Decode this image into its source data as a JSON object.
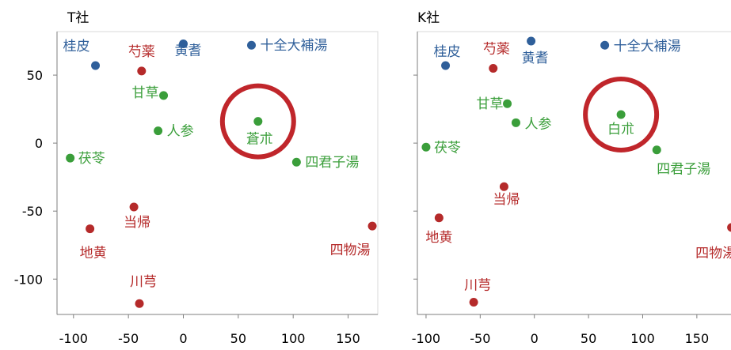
{
  "chart_data": [
    {
      "type": "scatter",
      "title": "T社",
      "xlabel": "",
      "ylabel": "",
      "xlim": [
        -115,
        177
      ],
      "ylim": [
        -126,
        82
      ],
      "xticks": [
        "-100",
        "-50",
        "0",
        "50",
        "100",
        "150"
      ],
      "yticks": [
        "50",
        "0",
        "-50",
        "-100"
      ],
      "grid": false,
      "legend": "none",
      "highlight": {
        "label": "蒼朮",
        "x": 68,
        "y": 16
      },
      "points": [
        {
          "label": "桂皮",
          "x": -80,
          "y": 57,
          "color": "#2f5f9a"
        },
        {
          "label": "芍薬",
          "x": -38,
          "y": 53,
          "color": "#b52a2a"
        },
        {
          "label": "黄耆",
          "x": 0,
          "y": 73,
          "color": "#2f5f9a"
        },
        {
          "label": "十全大補湯",
          "x": 62,
          "y": 72,
          "color": "#2f5f9a"
        },
        {
          "label": "甘草",
          "x": -18,
          "y": 35,
          "color": "#3a9e3a"
        },
        {
          "label": "人参",
          "x": -23,
          "y": 9,
          "color": "#3a9e3a"
        },
        {
          "label": "蒼朮",
          "x": 68,
          "y": 16,
          "color": "#3a9e3a"
        },
        {
          "label": "茯苓",
          "x": -103,
          "y": -11,
          "color": "#3a9e3a"
        },
        {
          "label": "四君子湯",
          "x": 103,
          "y": -14,
          "color": "#3a9e3a"
        },
        {
          "label": "当帰",
          "x": -45,
          "y": -47,
          "color": "#b52a2a"
        },
        {
          "label": "地黄",
          "x": -85,
          "y": -63,
          "color": "#b52a2a"
        },
        {
          "label": "四物湯",
          "x": 172,
          "y": -61,
          "color": "#b52a2a"
        },
        {
          "label": "川芎",
          "x": -40,
          "y": -118,
          "color": "#b52a2a"
        }
      ]
    },
    {
      "type": "scatter",
      "title": "K社",
      "xlabel": "",
      "ylabel": "",
      "xlim": [
        -108,
        183
      ],
      "ylim": [
        -126,
        82
      ],
      "xticks": [
        "-100",
        "-50",
        "0",
        "50",
        "100",
        "150"
      ],
      "yticks": [],
      "grid": false,
      "legend": "none",
      "highlight": {
        "label": "白朮",
        "x": 80,
        "y": 21
      },
      "points": [
        {
          "label": "桂皮",
          "x": -82,
          "y": 57,
          "color": "#2f5f9a"
        },
        {
          "label": "芍薬",
          "x": -38,
          "y": 55,
          "color": "#b52a2a"
        },
        {
          "label": "黄耆",
          "x": -3,
          "y": 75,
          "color": "#2f5f9a"
        },
        {
          "label": "十全大補湯",
          "x": 65,
          "y": 72,
          "color": "#2f5f9a"
        },
        {
          "label": "甘草",
          "x": -25,
          "y": 29,
          "color": "#3a9e3a"
        },
        {
          "label": "人参",
          "x": -17,
          "y": 15,
          "color": "#3a9e3a"
        },
        {
          "label": "白朮",
          "x": 80,
          "y": 21,
          "color": "#3a9e3a"
        },
        {
          "label": "茯苓",
          "x": -100,
          "y": -3,
          "color": "#3a9e3a"
        },
        {
          "label": "四君子湯",
          "x": 113,
          "y": -5,
          "color": "#3a9e3a"
        },
        {
          "label": "当帰",
          "x": -28,
          "y": -32,
          "color": "#b52a2a"
        },
        {
          "label": "地黄",
          "x": -88,
          "y": -55,
          "color": "#b52a2a"
        },
        {
          "label": "四物湯",
          "x": 182,
          "y": -62,
          "color": "#b52a2a"
        },
        {
          "label": "川芎",
          "x": -56,
          "y": -117,
          "color": "#b52a2a"
        }
      ]
    }
  ]
}
